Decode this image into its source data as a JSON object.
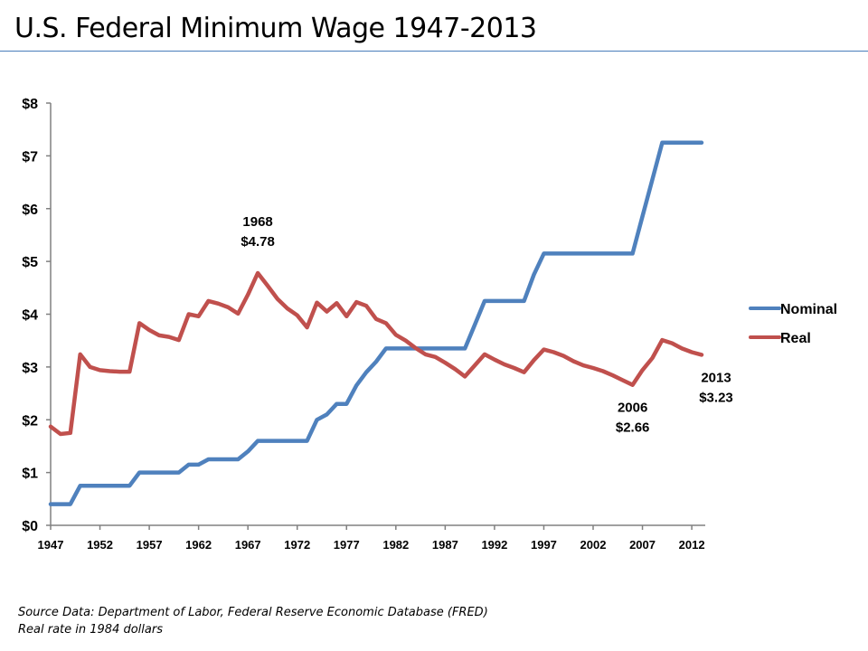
{
  "slide": {
    "title": "U.S. Federal Minimum Wage 1947-2013",
    "footnotes": [
      "Source Data:  Department of Labor, Federal Reserve Economic Database (FRED)",
      "Real rate in 1984 dollars"
    ]
  },
  "colors": {
    "nominal": "#4f81bd",
    "real": "#c0504d",
    "axis": "#808080",
    "title_rule": "#4a7ebb"
  },
  "chart_data": {
    "type": "line",
    "title": "U.S. Federal Minimum Wage 1947-2013",
    "xlabel": "",
    "ylabel": "",
    "ylim": [
      0,
      8
    ],
    "xlim": [
      1947,
      2013
    ],
    "grid": false,
    "legend_position": "right",
    "y_ticks": [
      0,
      1,
      2,
      3,
      4,
      5,
      6,
      7,
      8
    ],
    "y_tick_labels": [
      "$0",
      "$1",
      "$2",
      "$3",
      "$4",
      "$5",
      "$6",
      "$7",
      "$8"
    ],
    "x_ticks": [
      1947,
      1952,
      1957,
      1962,
      1967,
      1972,
      1977,
      1982,
      1987,
      1992,
      1997,
      2002,
      2007,
      2012
    ],
    "x_tick_labels": [
      "1947",
      "1952",
      "1957",
      "1962",
      "1967",
      "1972",
      "1977",
      "1982",
      "1987",
      "1992",
      "1997",
      "2002",
      "2007",
      "2012"
    ],
    "x": [
      1947,
      1948,
      1949,
      1950,
      1951,
      1952,
      1953,
      1954,
      1955,
      1956,
      1957,
      1958,
      1959,
      1960,
      1961,
      1962,
      1963,
      1964,
      1965,
      1966,
      1967,
      1968,
      1969,
      1970,
      1971,
      1972,
      1973,
      1974,
      1975,
      1976,
      1977,
      1978,
      1979,
      1980,
      1981,
      1982,
      1983,
      1984,
      1985,
      1986,
      1987,
      1988,
      1989,
      1990,
      1991,
      1992,
      1993,
      1994,
      1995,
      1996,
      1997,
      1998,
      1999,
      2000,
      2001,
      2002,
      2003,
      2004,
      2005,
      2006,
      2007,
      2008,
      2009,
      2010,
      2011,
      2012,
      2013
    ],
    "series": [
      {
        "name": "Nominal",
        "values": [
          0.4,
          0.4,
          0.4,
          0.75,
          0.75,
          0.75,
          0.75,
          0.75,
          0.75,
          1.0,
          1.0,
          1.0,
          1.0,
          1.0,
          1.15,
          1.15,
          1.25,
          1.25,
          1.25,
          1.25,
          1.4,
          1.6,
          1.6,
          1.6,
          1.6,
          1.6,
          1.6,
          2.0,
          2.1,
          2.3,
          2.3,
          2.65,
          2.9,
          3.1,
          3.35,
          3.35,
          3.35,
          3.35,
          3.35,
          3.35,
          3.35,
          3.35,
          3.35,
          3.8,
          4.25,
          4.25,
          4.25,
          4.25,
          4.25,
          4.75,
          5.15,
          5.15,
          5.15,
          5.15,
          5.15,
          5.15,
          5.15,
          5.15,
          5.15,
          5.15,
          5.85,
          6.55,
          7.25,
          7.25,
          7.25,
          7.25,
          7.25
        ]
      },
      {
        "name": "Real",
        "values": [
          1.87,
          1.73,
          1.75,
          3.24,
          3.0,
          2.94,
          2.92,
          2.91,
          2.91,
          3.83,
          3.7,
          3.6,
          3.57,
          3.51,
          4.0,
          3.96,
          4.25,
          4.2,
          4.13,
          4.01,
          4.37,
          4.78,
          4.54,
          4.29,
          4.11,
          3.98,
          3.75,
          4.22,
          4.05,
          4.21,
          3.96,
          4.23,
          4.16,
          3.91,
          3.83,
          3.61,
          3.5,
          3.36,
          3.24,
          3.19,
          3.08,
          2.96,
          2.82,
          3.03,
          3.24,
          3.14,
          3.05,
          2.98,
          2.9,
          3.13,
          3.33,
          3.28,
          3.21,
          3.11,
          3.03,
          2.98,
          2.92,
          2.84,
          2.75,
          2.66,
          2.94,
          3.17,
          3.51,
          3.45,
          3.35,
          3.28,
          3.23
        ]
      }
    ],
    "annotations": [
      {
        "year": 1968,
        "year_label": "1968",
        "value_label": "$4.78",
        "series": "Real",
        "placement": "above"
      },
      {
        "year": 2006,
        "year_label": "2006",
        "value_label": "$2.66",
        "series": "Real",
        "placement": "below"
      },
      {
        "year": 2013,
        "year_label": "2013",
        "value_label": "$3.23",
        "series": "Real",
        "placement": "below"
      }
    ]
  }
}
